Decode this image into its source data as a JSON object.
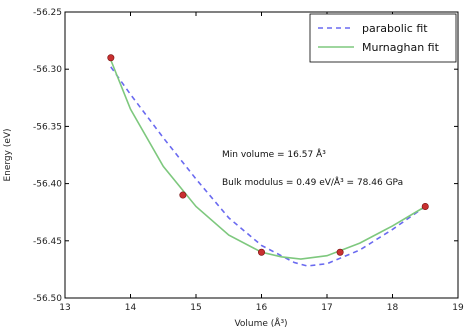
{
  "chart_data": {
    "type": "line",
    "xlabel": "Volume (Å³)",
    "ylabel": "Energy (eV)",
    "xlim": [
      13,
      19
    ],
    "ylim": [
      -56.5,
      -56.25
    ],
    "xticks": [
      "13",
      "14",
      "15",
      "16",
      "17",
      "18",
      "19"
    ],
    "yticks": [
      "-56.25",
      "-56.30",
      "-56.35",
      "-56.40",
      "-56.45",
      "-56.50"
    ],
    "grid": false,
    "legend_position": "top-right",
    "series": [
      {
        "name": "parabolic fit",
        "style": "dashed",
        "color": "#6a6af0",
        "x": [
          13.7,
          14.0,
          14.5,
          15.0,
          15.5,
          16.0,
          16.5,
          16.7,
          17.0,
          17.5,
          18.0,
          18.5
        ],
        "y": [
          -56.298,
          -56.322,
          -56.36,
          -56.396,
          -56.43,
          -56.454,
          -56.469,
          -56.472,
          -56.47,
          -56.458,
          -56.44,
          -56.42
        ]
      },
      {
        "name": "Murnaghan fit",
        "style": "solid",
        "color": "#7ec87e",
        "x": [
          13.7,
          14.0,
          14.5,
          15.0,
          15.5,
          16.0,
          16.3,
          16.6,
          17.0,
          17.5,
          18.0,
          18.5
        ],
        "y": [
          -56.292,
          -56.335,
          -56.385,
          -56.42,
          -56.445,
          -56.46,
          -56.464,
          -56.466,
          -56.463,
          -56.452,
          -56.437,
          -56.42
        ]
      }
    ],
    "points": {
      "color": "#c83030",
      "x": [
        13.7,
        14.8,
        16.0,
        17.2,
        18.5
      ],
      "y": [
        -56.29,
        -56.41,
        -56.46,
        -56.46,
        -56.42
      ]
    },
    "annotations": [
      "Min volume = 16.57 Å³",
      "Bulk modulus = 0.49 eV/Å³ = 78.46 GPa"
    ]
  }
}
